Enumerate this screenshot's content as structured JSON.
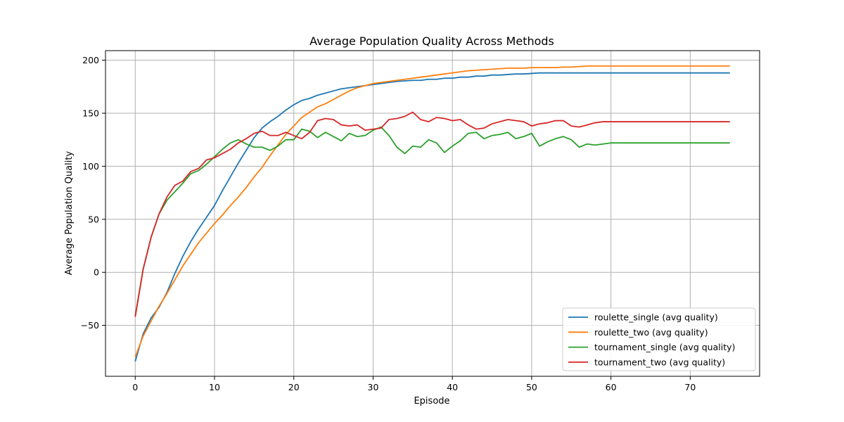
{
  "chart_data": {
    "type": "line",
    "title": "Average Population Quality Across Methods",
    "xlabel": "Episode",
    "ylabel": "Average Population Quality",
    "xlim": [
      -3.75,
      78.75
    ],
    "ylim": [
      -98,
      209
    ],
    "xticks": [
      0,
      10,
      20,
      30,
      40,
      50,
      60,
      70
    ],
    "yticks": [
      -50,
      0,
      50,
      100,
      150,
      200
    ],
    "grid": true,
    "legend_position": "lower-right",
    "series": [
      {
        "name": "roulette_single (avg quality)",
        "color": "#1f77b4",
        "values": [
          -84,
          -58,
          -43,
          -33,
          -19,
          -1,
          15,
          29,
          41,
          52,
          63,
          77,
          90,
          103,
          115,
          127,
          136,
          142,
          147,
          153,
          158,
          162,
          164,
          167,
          169,
          171,
          173,
          174,
          175,
          176,
          177,
          178,
          179,
          180,
          180.5,
          181,
          181,
          182,
          182,
          183,
          183,
          184,
          184,
          185,
          185,
          186,
          186,
          186.5,
          187,
          187,
          187.5,
          188,
          188,
          188,
          188,
          188,
          188,
          188,
          188,
          188,
          188,
          188,
          188,
          188,
          188,
          188,
          188,
          188,
          188,
          188,
          188,
          188,
          188,
          188,
          188,
          188
        ]
      },
      {
        "name": "roulette_two (avg quality)",
        "color": "#ff7f0e",
        "values": [
          -80,
          -60,
          -46,
          -32,
          -20,
          -7,
          6,
          17,
          28,
          37,
          46,
          54,
          63,
          71,
          80,
          90,
          99,
          110,
          120,
          130,
          138,
          146,
          151,
          156,
          159,
          163,
          167,
          171,
          174,
          176,
          178,
          179,
          180,
          181,
          182,
          183,
          184,
          185,
          186,
          187,
          188,
          189,
          190,
          190.5,
          191,
          191.5,
          192,
          192.5,
          192.5,
          192.5,
          193,
          193,
          193,
          193,
          193.5,
          193.5,
          194,
          194.5,
          194.5,
          194.5,
          194.5,
          194.5,
          194.5,
          194.5,
          194.5,
          194.5,
          194.5,
          194.5,
          194.5,
          194.5,
          194.5,
          194.5,
          194.5,
          194.5,
          194.5,
          194.5
        ]
      },
      {
        "name": "tournament_single (avg quality)",
        "color": "#2ca02c",
        "values": [
          -41,
          3,
          33,
          55,
          68,
          76,
          84,
          93,
          96,
          102,
          109,
          116,
          122,
          125,
          121,
          118,
          118,
          115,
          119,
          125,
          125,
          135,
          133,
          127,
          132,
          128,
          124,
          131,
          128,
          129,
          134,
          137,
          129,
          118,
          112,
          119,
          118,
          125,
          122,
          113,
          119,
          124,
          131,
          132,
          126,
          129,
          130,
          132,
          126,
          128,
          131,
          119,
          123,
          126,
          128,
          125,
          118,
          121,
          120,
          121,
          122,
          122,
          122,
          122,
          122,
          122,
          122,
          122,
          122,
          122,
          122,
          122,
          122,
          122,
          122,
          122
        ]
      },
      {
        "name": "tournament_two (avg quality)",
        "color": "#d62728",
        "values": [
          -42,
          3,
          33,
          55,
          71,
          82,
          86,
          95,
          98,
          106,
          108,
          112,
          116,
          122,
          126,
          131,
          133,
          129,
          129,
          132,
          129,
          126,
          132,
          143,
          145,
          144,
          139,
          138,
          139,
          134,
          135,
          136,
          144,
          145,
          147,
          151,
          144,
          142,
          146,
          145,
          143,
          144,
          139,
          135,
          136,
          140,
          142,
          144,
          143,
          142,
          138,
          140,
          141,
          143,
          143,
          138,
          137,
          139,
          141,
          142,
          142,
          142,
          142,
          142,
          142,
          142,
          142,
          142,
          142,
          142,
          142,
          142,
          142,
          142,
          142,
          142
        ]
      }
    ]
  }
}
